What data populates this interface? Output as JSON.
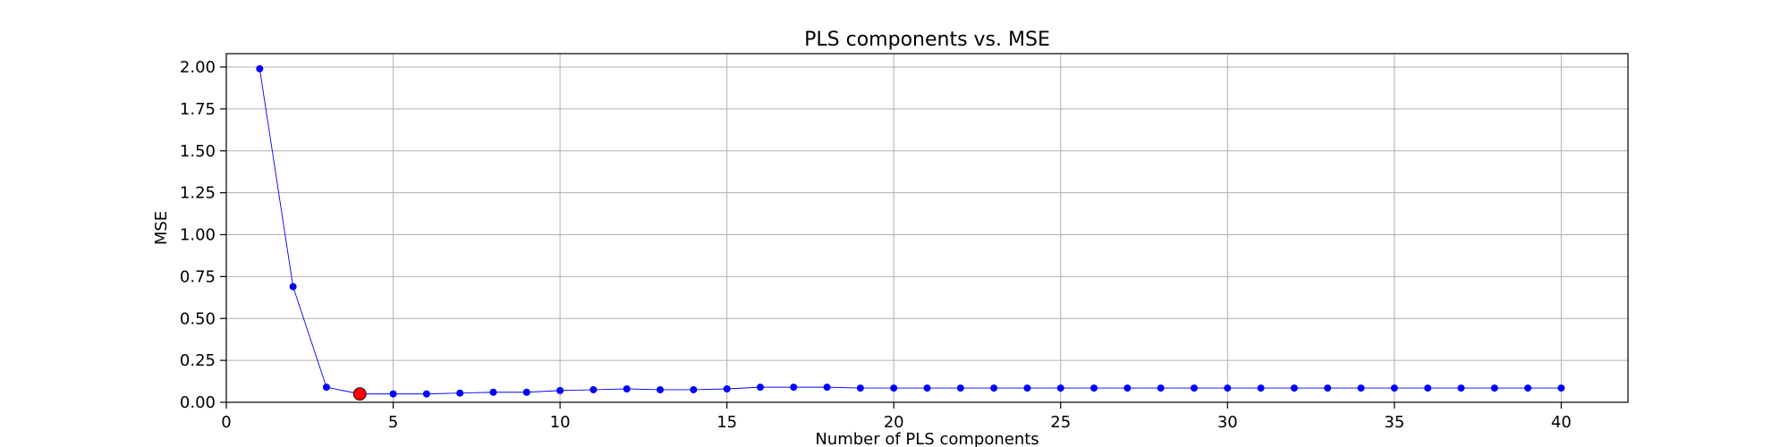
{
  "chart_data": {
    "type": "line",
    "title": "PLS components vs. MSE",
    "xlabel": "Number of PLS components",
    "ylabel": "MSE",
    "xlim": [
      0,
      42
    ],
    "ylim": [
      0,
      2.08
    ],
    "xticks": [
      0,
      5,
      10,
      15,
      20,
      25,
      30,
      35,
      40
    ],
    "yticks": [
      0.0,
      0.25,
      0.5,
      0.75,
      1.0,
      1.25,
      1.5,
      1.75,
      2.0
    ],
    "ytick_labels": [
      "0.00",
      "0.25",
      "0.50",
      "0.75",
      "1.00",
      "1.25",
      "1.50",
      "1.75",
      "2.00"
    ],
    "grid": true,
    "series": [
      {
        "color": "#0000ff",
        "x": [
          1,
          2,
          3,
          4,
          5,
          6,
          7,
          8,
          9,
          10,
          11,
          12,
          13,
          14,
          15,
          16,
          17,
          18,
          19,
          20,
          21,
          22,
          23,
          24,
          25,
          26,
          27,
          28,
          29,
          30,
          31,
          32,
          33,
          34,
          35,
          36,
          37,
          38,
          39,
          40
        ],
        "y": [
          1.99,
          0.69,
          0.09,
          0.05,
          0.05,
          0.05,
          0.055,
          0.06,
          0.06,
          0.07,
          0.075,
          0.08,
          0.075,
          0.075,
          0.08,
          0.09,
          0.09,
          0.09,
          0.085,
          0.085,
          0.085,
          0.085,
          0.085,
          0.085,
          0.085,
          0.085,
          0.085,
          0.085,
          0.085,
          0.085,
          0.085,
          0.085,
          0.085,
          0.085,
          0.085,
          0.085,
          0.085,
          0.085,
          0.085,
          0.085
        ]
      }
    ],
    "highlight": {
      "x": 4,
      "y": 0.05,
      "color": "#ff0000"
    }
  }
}
